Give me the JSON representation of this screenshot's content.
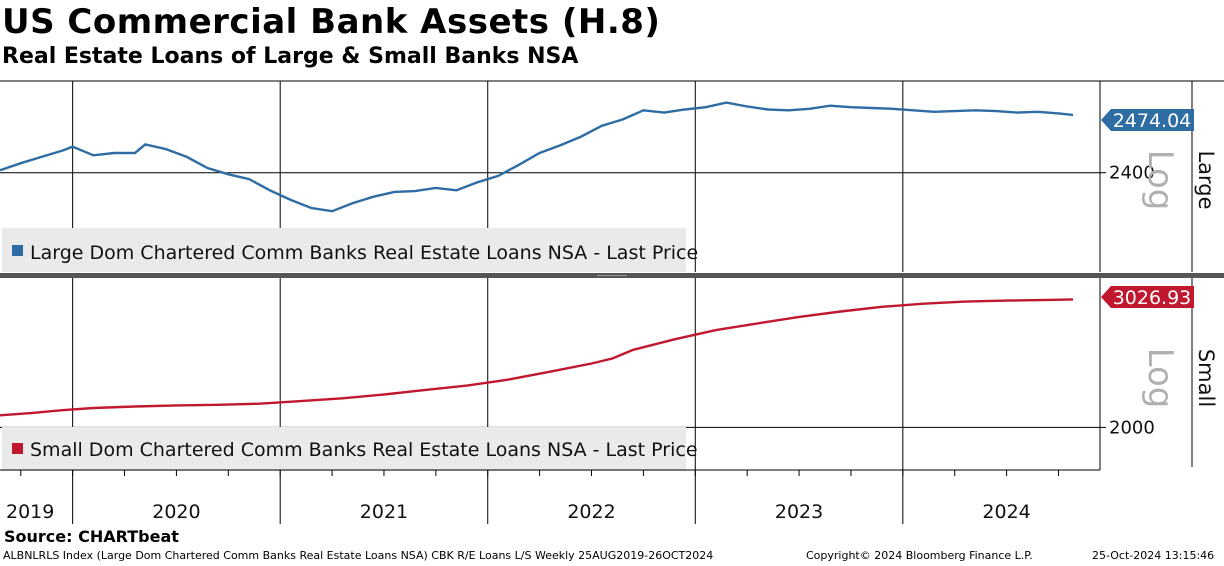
{
  "header": {
    "title": "US Commercial Bank Assets (H.8)",
    "subtitle": "Real Estate Loans of Large & Small Banks NSA"
  },
  "footer": {
    "source": "Source: CHARTbeat",
    "index_info": "ALBNLRLS Index (Large Dom Chartered Comm Banks Real Estate Loans NSA) CBK R/E Loans L/S  Weekly 25AUG2019-26OCT2024",
    "copyright": "Copyright© 2024 Bloomberg Finance L.P.",
    "timestamp": "25-Oct-2024 13:15:46"
  },
  "chart_data": [
    {
      "type": "line",
      "panel": "top",
      "panel_label": "Large",
      "scale_label": "Log",
      "legend": "Large Dom Chartered Comm Banks Real Estate Loans NSA - Last Price",
      "color": "#2e6ca4",
      "last_value": "2474.04",
      "y_ticks": [
        {
          "label": "2400",
          "value": 2400
        }
      ],
      "ylim": [
        2335,
        2500
      ],
      "x": [
        2019.65,
        2019.75,
        2019.85,
        2019.95,
        2020.0,
        2020.1,
        2020.2,
        2020.3,
        2020.35,
        2020.45,
        2020.55,
        2020.65,
        2020.75,
        2020.85,
        2020.95,
        2021.05,
        2021.15,
        2021.25,
        2021.35,
        2021.45,
        2021.55,
        2021.65,
        2021.75,
        2021.85,
        2021.95,
        2022.05,
        2022.15,
        2022.25,
        2022.35,
        2022.45,
        2022.55,
        2022.65,
        2022.75,
        2022.85,
        2022.95,
        2023.05,
        2023.15,
        2023.25,
        2023.35,
        2023.45,
        2023.55,
        2023.65,
        2023.75,
        2023.85,
        2023.95,
        2024.05,
        2024.15,
        2024.25,
        2024.35,
        2024.45,
        2024.55,
        2024.65,
        2024.75,
        2024.82
      ],
      "values": [
        2403,
        2412,
        2420,
        2428,
        2433,
        2422,
        2425,
        2425,
        2436,
        2430,
        2420,
        2406,
        2398,
        2392,
        2378,
        2366,
        2356,
        2352,
        2362,
        2370,
        2376,
        2377,
        2381,
        2378,
        2388,
        2396,
        2410,
        2425,
        2435,
        2446,
        2460,
        2468,
        2480,
        2477,
        2481,
        2484,
        2490,
        2485,
        2481,
        2480,
        2482,
        2486,
        2484,
        2483,
        2482,
        2480,
        2478,
        2479,
        2480,
        2479,
        2477,
        2478,
        2476,
        2474.04
      ]
    },
    {
      "type": "line",
      "panel": "bottom",
      "panel_label": "Small",
      "scale_label": "Log",
      "legend": "Small Dom Chartered Comm Banks Real Estate Loans NSA - Last Price",
      "color": "#c0182e",
      "last_value": "3026.93",
      "y_ticks": [
        {
          "label": "2000",
          "value": 2000
        }
      ],
      "ylim": [
        1800,
        3060
      ],
      "x": [
        2019.65,
        2019.8,
        2019.95,
        2020.1,
        2020.3,
        2020.5,
        2020.7,
        2020.9,
        2021.1,
        2021.3,
        2021.5,
        2021.7,
        2021.9,
        2022.1,
        2022.3,
        2022.5,
        2022.6,
        2022.7,
        2022.9,
        2023.1,
        2023.3,
        2023.5,
        2023.7,
        2023.9,
        2024.1,
        2024.3,
        2024.5,
        2024.7,
        2024.82
      ],
      "values": [
        2080,
        2095,
        2115,
        2130,
        2140,
        2148,
        2152,
        2160,
        2178,
        2198,
        2225,
        2258,
        2290,
        2335,
        2395,
        2460,
        2500,
        2570,
        2660,
        2740,
        2800,
        2860,
        2910,
        2955,
        2985,
        3005,
        3015,
        3022,
        3026.93
      ]
    }
  ],
  "x_axis": {
    "year_labels": [
      "2019",
      "2020",
      "2021",
      "2022",
      "2023",
      "2024"
    ],
    "label_positions": [
      2019.65,
      2020.5,
      2021.5,
      2022.5,
      2023.5,
      2024.5
    ],
    "year_boundaries": [
      2020.0,
      2021.0,
      2022.0,
      2023.0,
      2024.0,
      2025.0
    ],
    "xlim": [
      2019.65,
      2024.95
    ],
    "quarter_ticks": [
      2019.75,
      2020.0,
      2020.25,
      2020.5,
      2020.75,
      2021.0,
      2021.25,
      2021.5,
      2021.75,
      2022.0,
      2022.25,
      2022.5,
      2022.75,
      2023.0,
      2023.25,
      2023.5,
      2023.75,
      2024.0,
      2024.25,
      2024.5,
      2024.75
    ]
  }
}
